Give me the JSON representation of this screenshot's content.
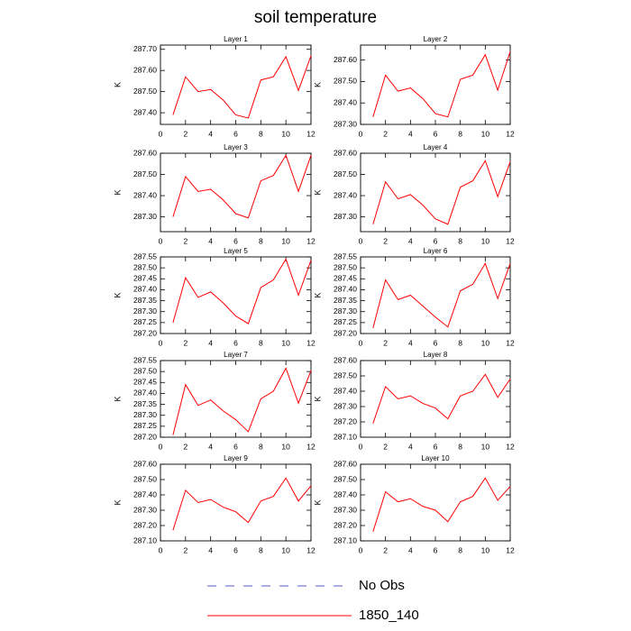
{
  "title": "soil temperature",
  "legend": [
    {
      "name": "No Obs",
      "color": "#5a5ac8",
      "dash": true
    },
    {
      "name": "1850_140",
      "color": "#ff0000",
      "dash": false
    }
  ],
  "chart_data": [
    {
      "type": "line",
      "title": "Layer 1",
      "ylabel": "K",
      "x": [
        1,
        2,
        3,
        4,
        5,
        6,
        7,
        8,
        9,
        10,
        11,
        12
      ],
      "xlim": [
        0,
        12
      ],
      "xticks": [
        0,
        2,
        4,
        6,
        8,
        10,
        12
      ],
      "color": "#ff0000",
      "values": [
        287.39,
        287.57,
        287.5,
        287.51,
        287.46,
        287.39,
        287.375,
        287.555,
        287.57,
        287.665,
        287.505,
        287.67
      ],
      "ylim": [
        287.345,
        287.72
      ],
      "yticks": [
        {
          "value": 287.4,
          "label": "287.40"
        },
        {
          "value": 287.5,
          "label": "287.50"
        },
        {
          "value": 287.6,
          "label": "287.60"
        },
        {
          "value": 287.7,
          "label": "287.70"
        }
      ]
    },
    {
      "type": "line",
      "title": "Layer 2",
      "ylabel": "K",
      "x": [
        1,
        2,
        3,
        4,
        5,
        6,
        7,
        8,
        9,
        10,
        11,
        12
      ],
      "xlim": [
        0,
        12
      ],
      "xticks": [
        0,
        2,
        4,
        6,
        8,
        10,
        12
      ],
      "color": "#ff0000",
      "values": [
        287.335,
        287.53,
        287.455,
        287.47,
        287.42,
        287.35,
        287.335,
        287.51,
        287.53,
        287.625,
        287.46,
        287.64
      ],
      "ylim": [
        287.3,
        287.67
      ],
      "yticks": [
        {
          "value": 287.3,
          "label": "287.30"
        },
        {
          "value": 287.4,
          "label": "287.40"
        },
        {
          "value": 287.5,
          "label": "287.50"
        },
        {
          "value": 287.6,
          "label": "287.60"
        }
      ]
    },
    {
      "type": "line",
      "title": "Layer 3",
      "ylabel": "K",
      "x": [
        1,
        2,
        3,
        4,
        5,
        6,
        7,
        8,
        9,
        10,
        11,
        12
      ],
      "xlim": [
        0,
        12
      ],
      "xticks": [
        0,
        2,
        4,
        6,
        8,
        10,
        12
      ],
      "color": "#ff0000",
      "values": [
        287.3,
        287.49,
        287.42,
        287.43,
        287.38,
        287.315,
        287.295,
        287.47,
        287.495,
        287.59,
        287.42,
        287.59
      ],
      "ylim": [
        287.23,
        287.6
      ],
      "yticks": [
        {
          "value": 287.3,
          "label": "287.30"
        },
        {
          "value": 287.4,
          "label": "287.40"
        },
        {
          "value": 287.5,
          "label": "287.50"
        },
        {
          "value": 287.6,
          "label": "287.60"
        }
      ]
    },
    {
      "type": "line",
      "title": "Layer 4",
      "ylabel": "K",
      "x": [
        1,
        2,
        3,
        4,
        5,
        6,
        7,
        8,
        9,
        10,
        11,
        12
      ],
      "xlim": [
        0,
        12
      ],
      "xticks": [
        0,
        2,
        4,
        6,
        8,
        10,
        12
      ],
      "color": "#ff0000",
      "values": [
        287.265,
        287.465,
        287.385,
        287.405,
        287.355,
        287.29,
        287.265,
        287.44,
        287.47,
        287.565,
        287.395,
        287.56
      ],
      "ylim": [
        287.23,
        287.6
      ],
      "yticks": [
        {
          "value": 287.3,
          "label": "287.30"
        },
        {
          "value": 287.4,
          "label": "287.40"
        },
        {
          "value": 287.5,
          "label": "287.50"
        },
        {
          "value": 287.6,
          "label": "287.60"
        }
      ]
    },
    {
      "type": "line",
      "title": "Layer 5",
      "ylabel": "K",
      "x": [
        1,
        2,
        3,
        4,
        5,
        6,
        7,
        8,
        9,
        10,
        11,
        12
      ],
      "xlim": [
        0,
        12
      ],
      "xticks": [
        0,
        2,
        4,
        6,
        8,
        10,
        12
      ],
      "color": "#ff0000",
      "values": [
        287.25,
        287.455,
        287.365,
        287.39,
        287.34,
        287.28,
        287.245,
        287.41,
        287.445,
        287.54,
        287.375,
        287.535
      ],
      "ylim": [
        287.2,
        287.55
      ],
      "yticks": [
        {
          "value": 287.2,
          "label": "287.20"
        },
        287.25,
        {
          "value": 287.3,
          "label": "287.30"
        },
        287.35,
        {
          "value": 287.4,
          "label": "287.40"
        },
        287.45,
        {
          "value": 287.5,
          "label": "287.50"
        },
        287.55
      ]
    },
    {
      "type": "line",
      "title": "Layer 6",
      "ylabel": "K",
      "x": [
        1,
        2,
        3,
        4,
        5,
        6,
        7,
        8,
        9,
        10,
        11,
        12
      ],
      "xlim": [
        0,
        12
      ],
      "xticks": [
        0,
        2,
        4,
        6,
        8,
        10,
        12
      ],
      "color": "#ff0000",
      "values": [
        287.225,
        287.445,
        287.355,
        287.375,
        287.325,
        287.275,
        287.23,
        287.395,
        287.425,
        287.52,
        287.36,
        287.52
      ],
      "ylim": [
        287.2,
        287.55
      ],
      "yticks": [
        {
          "value": 287.2,
          "label": "287.20"
        },
        287.25,
        {
          "value": 287.3,
          "label": "287.30"
        },
        287.35,
        {
          "value": 287.4,
          "label": "287.40"
        },
        287.45,
        {
          "value": 287.5,
          "label": "287.50"
        },
        287.55
      ]
    },
    {
      "type": "line",
      "title": "Layer 7",
      "ylabel": "K",
      "x": [
        1,
        2,
        3,
        4,
        5,
        6,
        7,
        8,
        9,
        10,
        11,
        12
      ],
      "xlim": [
        0,
        12
      ],
      "xticks": [
        0,
        2,
        4,
        6,
        8,
        10,
        12
      ],
      "color": "#ff0000",
      "values": [
        287.21,
        287.44,
        287.345,
        287.37,
        287.32,
        287.28,
        287.225,
        287.375,
        287.41,
        287.515,
        287.355,
        287.505
      ],
      "ylim": [
        287.2,
        287.55
      ],
      "yticks": [
        {
          "value": 287.2,
          "label": "287.20"
        },
        287.25,
        {
          "value": 287.3,
          "label": "287.30"
        },
        287.35,
        {
          "value": 287.4,
          "label": "287.40"
        },
        287.45,
        {
          "value": 287.5,
          "label": "287.50"
        },
        287.55
      ]
    },
    {
      "type": "line",
      "title": "Layer 8",
      "ylabel": "K",
      "x": [
        1,
        2,
        3,
        4,
        5,
        6,
        7,
        8,
        9,
        10,
        11,
        12
      ],
      "xlim": [
        0,
        12
      ],
      "xticks": [
        0,
        2,
        4,
        6,
        8,
        10,
        12
      ],
      "color": "#ff0000",
      "values": [
        287.19,
        287.43,
        287.35,
        287.37,
        287.32,
        287.29,
        287.22,
        287.37,
        287.4,
        287.51,
        287.36,
        287.48
      ],
      "ylim": [
        287.1,
        287.6
      ],
      "yticks": [
        {
          "value": 287.1,
          "label": "287.10"
        },
        {
          "value": 287.2,
          "label": "287.20"
        },
        {
          "value": 287.3,
          "label": "287.30"
        },
        {
          "value": 287.4,
          "label": "287.40"
        },
        {
          "value": 287.5,
          "label": "287.50"
        },
        {
          "value": 287.6,
          "label": "287.60"
        }
      ]
    },
    {
      "type": "line",
      "title": "Layer 9",
      "ylabel": "K",
      "x": [
        1,
        2,
        3,
        4,
        5,
        6,
        7,
        8,
        9,
        10,
        11,
        12
      ],
      "xlim": [
        0,
        12
      ],
      "xticks": [
        0,
        2,
        4,
        6,
        8,
        10,
        12
      ],
      "color": "#ff0000",
      "values": [
        287.17,
        287.43,
        287.35,
        287.37,
        287.32,
        287.29,
        287.22,
        287.36,
        287.39,
        287.51,
        287.36,
        287.46
      ],
      "ylim": [
        287.1,
        287.6
      ],
      "yticks": [
        {
          "value": 287.1,
          "label": "287.10"
        },
        {
          "value": 287.2,
          "label": "287.20"
        },
        {
          "value": 287.3,
          "label": "287.30"
        },
        {
          "value": 287.4,
          "label": "287.40"
        },
        {
          "value": 287.5,
          "label": "287.50"
        },
        {
          "value": 287.6,
          "label": "287.60"
        }
      ]
    },
    {
      "type": "line",
      "title": "Layer 10",
      "ylabel": "K",
      "x": [
        1,
        2,
        3,
        4,
        5,
        6,
        7,
        8,
        9,
        10,
        11,
        12
      ],
      "xlim": [
        0,
        12
      ],
      "xticks": [
        0,
        2,
        4,
        6,
        8,
        10,
        12
      ],
      "color": "#ff0000",
      "values": [
        287.16,
        287.42,
        287.355,
        287.375,
        287.325,
        287.3,
        287.225,
        287.355,
        287.39,
        287.51,
        287.365,
        287.455
      ],
      "ylim": [
        287.1,
        287.6
      ],
      "yticks": [
        {
          "value": 287.1,
          "label": "287.10"
        },
        {
          "value": 287.2,
          "label": "287.20"
        },
        {
          "value": 287.3,
          "label": "287.30"
        },
        {
          "value": 287.4,
          "label": "287.40"
        },
        {
          "value": 287.5,
          "label": "287.50"
        },
        {
          "value": 287.6,
          "label": "287.60"
        }
      ]
    }
  ]
}
